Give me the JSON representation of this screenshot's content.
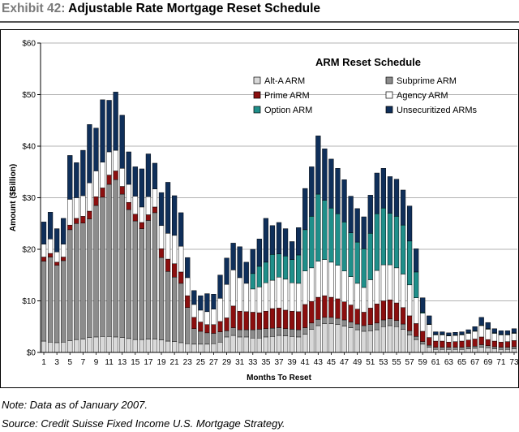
{
  "header": {
    "exhibit_label": "Exhibit 42:",
    "title": "Adjustable Rate Mortgage Reset Schedule"
  },
  "footer": {
    "note": "Note: Data as of January 2007.",
    "source": "Source: Credit Suisse Fixed Income U.S. Mortgage Strategy."
  },
  "colors": {
    "alt_a": "#d9d9d9",
    "subprime": "#8c8c8c",
    "prime": "#8b0f0f",
    "agency": "#ffffff",
    "option": "#1f8f8a",
    "unsecuritized": "#0f2f5a"
  },
  "chart_data": {
    "type": "bar",
    "stacked": true,
    "title": "ARM Reset Schedule",
    "xlabel": "Months To Reset",
    "ylabel": "Amount ($Billion)",
    "ylim": [
      0,
      60
    ],
    "yticks": [
      "$0",
      "$10",
      "$20",
      "$30",
      "$40",
      "$50",
      "$60"
    ],
    "categories": [
      "1",
      "2",
      "3",
      "4",
      "5",
      "6",
      "7",
      "8",
      "9",
      "10",
      "11",
      "12",
      "13",
      "14",
      "15",
      "16",
      "17",
      "18",
      "19",
      "20",
      "21",
      "22",
      "23",
      "24",
      "25",
      "26",
      "27",
      "28",
      "29",
      "30",
      "31",
      "32",
      "33",
      "34",
      "35",
      "36",
      "37",
      "38",
      "39",
      "40",
      "41",
      "42",
      "43",
      "44",
      "45",
      "46",
      "47",
      "48",
      "49",
      "50",
      "51",
      "52",
      "53",
      "54",
      "55",
      "56",
      "57",
      "58",
      "59",
      "60",
      "61",
      "62",
      "63",
      "64",
      "65",
      "66",
      "67",
      "68",
      "69",
      "70",
      "71",
      "72",
      "73"
    ],
    "xtick_labels": [
      "1",
      "3",
      "5",
      "7",
      "9",
      "11",
      "13",
      "15",
      "17",
      "19",
      "21",
      "23",
      "25",
      "27",
      "29",
      "31",
      "33",
      "35",
      "37",
      "39",
      "41",
      "43",
      "45",
      "47",
      "49",
      "51",
      "53",
      "55",
      "57",
      "59",
      "61",
      "63",
      "65",
      "67",
      "69",
      "71",
      "73"
    ],
    "legend_position": "top-right",
    "series": [
      {
        "name": "Alt-A ARM",
        "values": [
          2.2,
          2.0,
          1.9,
          2.0,
          2.3,
          2.5,
          2.6,
          2.9,
          3.0,
          3.1,
          3.1,
          3.0,
          2.9,
          2.7,
          2.5,
          2.5,
          2.6,
          2.6,
          2.4,
          2.2,
          2.1,
          1.9,
          1.7,
          1.6,
          1.6,
          1.6,
          1.7,
          2.0,
          3.0,
          3.3,
          3.0,
          3.0,
          2.8,
          2.8,
          3.0,
          3.1,
          3.3,
          3.2,
          3.1,
          3.0,
          3.5,
          4.5,
          5.2,
          5.6,
          5.6,
          5.4,
          5.1,
          4.8,
          4.4,
          4.1,
          4.2,
          4.4,
          5.0,
          5.2,
          5.0,
          4.5,
          3.4,
          2.5,
          1.6,
          1.0,
          0.6,
          0.6,
          0.6,
          0.6,
          0.6,
          0.7,
          0.8,
          1.0,
          0.9,
          0.7,
          0.6,
          0.6,
          0.7
        ]
      },
      {
        "name": "Subprime ARM",
        "values": [
          15.5,
          16.5,
          15.0,
          15.8,
          21.5,
          22.5,
          22.5,
          23.0,
          25.5,
          27.0,
          29.5,
          30.5,
          27.8,
          25.0,
          23.0,
          21.5,
          23.0,
          24.5,
          16.0,
          13.5,
          12.5,
          11.5,
          7.0,
          3.0,
          2.5,
          2.2,
          2.0,
          2.0,
          1.2,
          1.5,
          1.4,
          1.4,
          1.6,
          1.7,
          1.6,
          1.6,
          1.5,
          1.4,
          1.4,
          1.4,
          1.3,
          1.2,
          1.2,
          1.2,
          1.2,
          1.2,
          1.2,
          1.1,
          1.1,
          1.1,
          1.2,
          1.3,
          1.3,
          1.3,
          1.2,
          1.0,
          0.8,
          0.6,
          0.5,
          0.4,
          0.4,
          0.4,
          0.4,
          0.4,
          0.4,
          0.4,
          0.4,
          0.5,
          0.4,
          0.4,
          0.4,
          0.4,
          0.4
        ]
      },
      {
        "name": "Prime ARM",
        "values": [
          0.8,
          0.7,
          0.6,
          0.7,
          0.9,
          1.0,
          1.3,
          1.5,
          1.7,
          1.8,
          1.8,
          1.7,
          1.5,
          1.4,
          1.3,
          1.2,
          1.1,
          1.1,
          1.7,
          2.4,
          2.6,
          2.2,
          2.3,
          2.2,
          1.8,
          1.6,
          1.7,
          2.0,
          2.5,
          4.2,
          3.6,
          3.5,
          3.4,
          3.2,
          3.4,
          3.8,
          3.8,
          3.6,
          3.5,
          3.5,
          4.5,
          4.2,
          4.3,
          4.2,
          3.9,
          3.8,
          3.5,
          3.3,
          2.9,
          2.6,
          3.2,
          3.7,
          3.7,
          3.7,
          3.4,
          3.2,
          2.9,
          2.5,
          2.0,
          1.5,
          1.2,
          1.2,
          1.0,
          1.1,
          1.2,
          1.3,
          1.4,
          1.5,
          1.2,
          1.1,
          1.0,
          1.1,
          1.2
        ]
      },
      {
        "name": "Agency ARM",
        "values": [
          2.5,
          2.8,
          2.0,
          2.5,
          5.0,
          4.0,
          4.0,
          5.5,
          5.0,
          5.0,
          4.5,
          4.0,
          3.5,
          3.5,
          3.5,
          3.0,
          3.5,
          3.5,
          4.5,
          5.0,
          5.5,
          5.0,
          3.5,
          2.5,
          2.3,
          2.5,
          3.0,
          4.5,
          6.5,
          7.0,
          6.5,
          5.5,
          4.5,
          5.0,
          5.5,
          5.5,
          6.0,
          6.0,
          5.5,
          5.5,
          6.5,
          6.5,
          7.0,
          7.0,
          6.8,
          6.5,
          6.0,
          5.5,
          5.0,
          4.8,
          5.5,
          6.5,
          7.0,
          6.8,
          6.8,
          6.5,
          6.0,
          5.0,
          3.5,
          2.5,
          1.2,
          1.2,
          1.2,
          1.2,
          1.2,
          1.3,
          1.5,
          2.2,
          2.0,
          1.5,
          1.4,
          1.3,
          1.4
        ]
      },
      {
        "name": "Option ARM",
        "values": [
          0,
          0,
          0,
          0,
          0,
          0,
          0,
          0,
          0,
          0,
          0,
          0,
          0,
          0,
          0,
          0,
          0,
          0,
          0,
          0,
          0,
          0,
          0,
          0,
          0,
          0,
          0,
          0,
          0,
          0,
          0,
          0,
          3.0,
          4.0,
          4.0,
          5.0,
          4.5,
          4.5,
          4.5,
          5.5,
          8.0,
          10.0,
          13.0,
          11.5,
          10.5,
          10.0,
          9.5,
          8.5,
          8.0,
          7.5,
          9.0,
          11.0,
          11.0,
          10.0,
          10.0,
          9.5,
          8.5,
          5.0,
          0.2,
          0.1,
          0.1,
          0.1,
          0.1,
          0.1,
          0.1,
          0.1,
          0.1,
          0.1,
          0.1,
          0.1,
          0.1,
          0.1,
          0.1
        ]
      },
      {
        "name": "Unsecuritized ARMs",
        "values": [
          4.3,
          5.2,
          4.5,
          5.0,
          8.5,
          6.8,
          8.8,
          11.3,
          8.3,
          12.1,
          10.0,
          11.3,
          10.3,
          6.3,
          5.7,
          7.4,
          8.3,
          5.0,
          6.4,
          9.9,
          7.7,
          6.5,
          3.9,
          2.7,
          2.8,
          3.5,
          2.9,
          4.5,
          5.1,
          5.2,
          6.0,
          4.1,
          4.7,
          5.3,
          8.5,
          5.6,
          6.1,
          5.3,
          3.5,
          5.3,
          8.0,
          9.6,
          11.3,
          10.0,
          9.5,
          8.8,
          8.2,
          7.1,
          6.5,
          6.2,
          7.4,
          7.9,
          7.7,
          7.1,
          7.2,
          6.8,
          6.8,
          4.5,
          2.8,
          1.6,
          0.5,
          0.5,
          0.5,
          0.5,
          0.5,
          0.6,
          0.8,
          1.5,
          1.2,
          0.8,
          0.7,
          0.7,
          0.8
        ]
      }
    ]
  }
}
